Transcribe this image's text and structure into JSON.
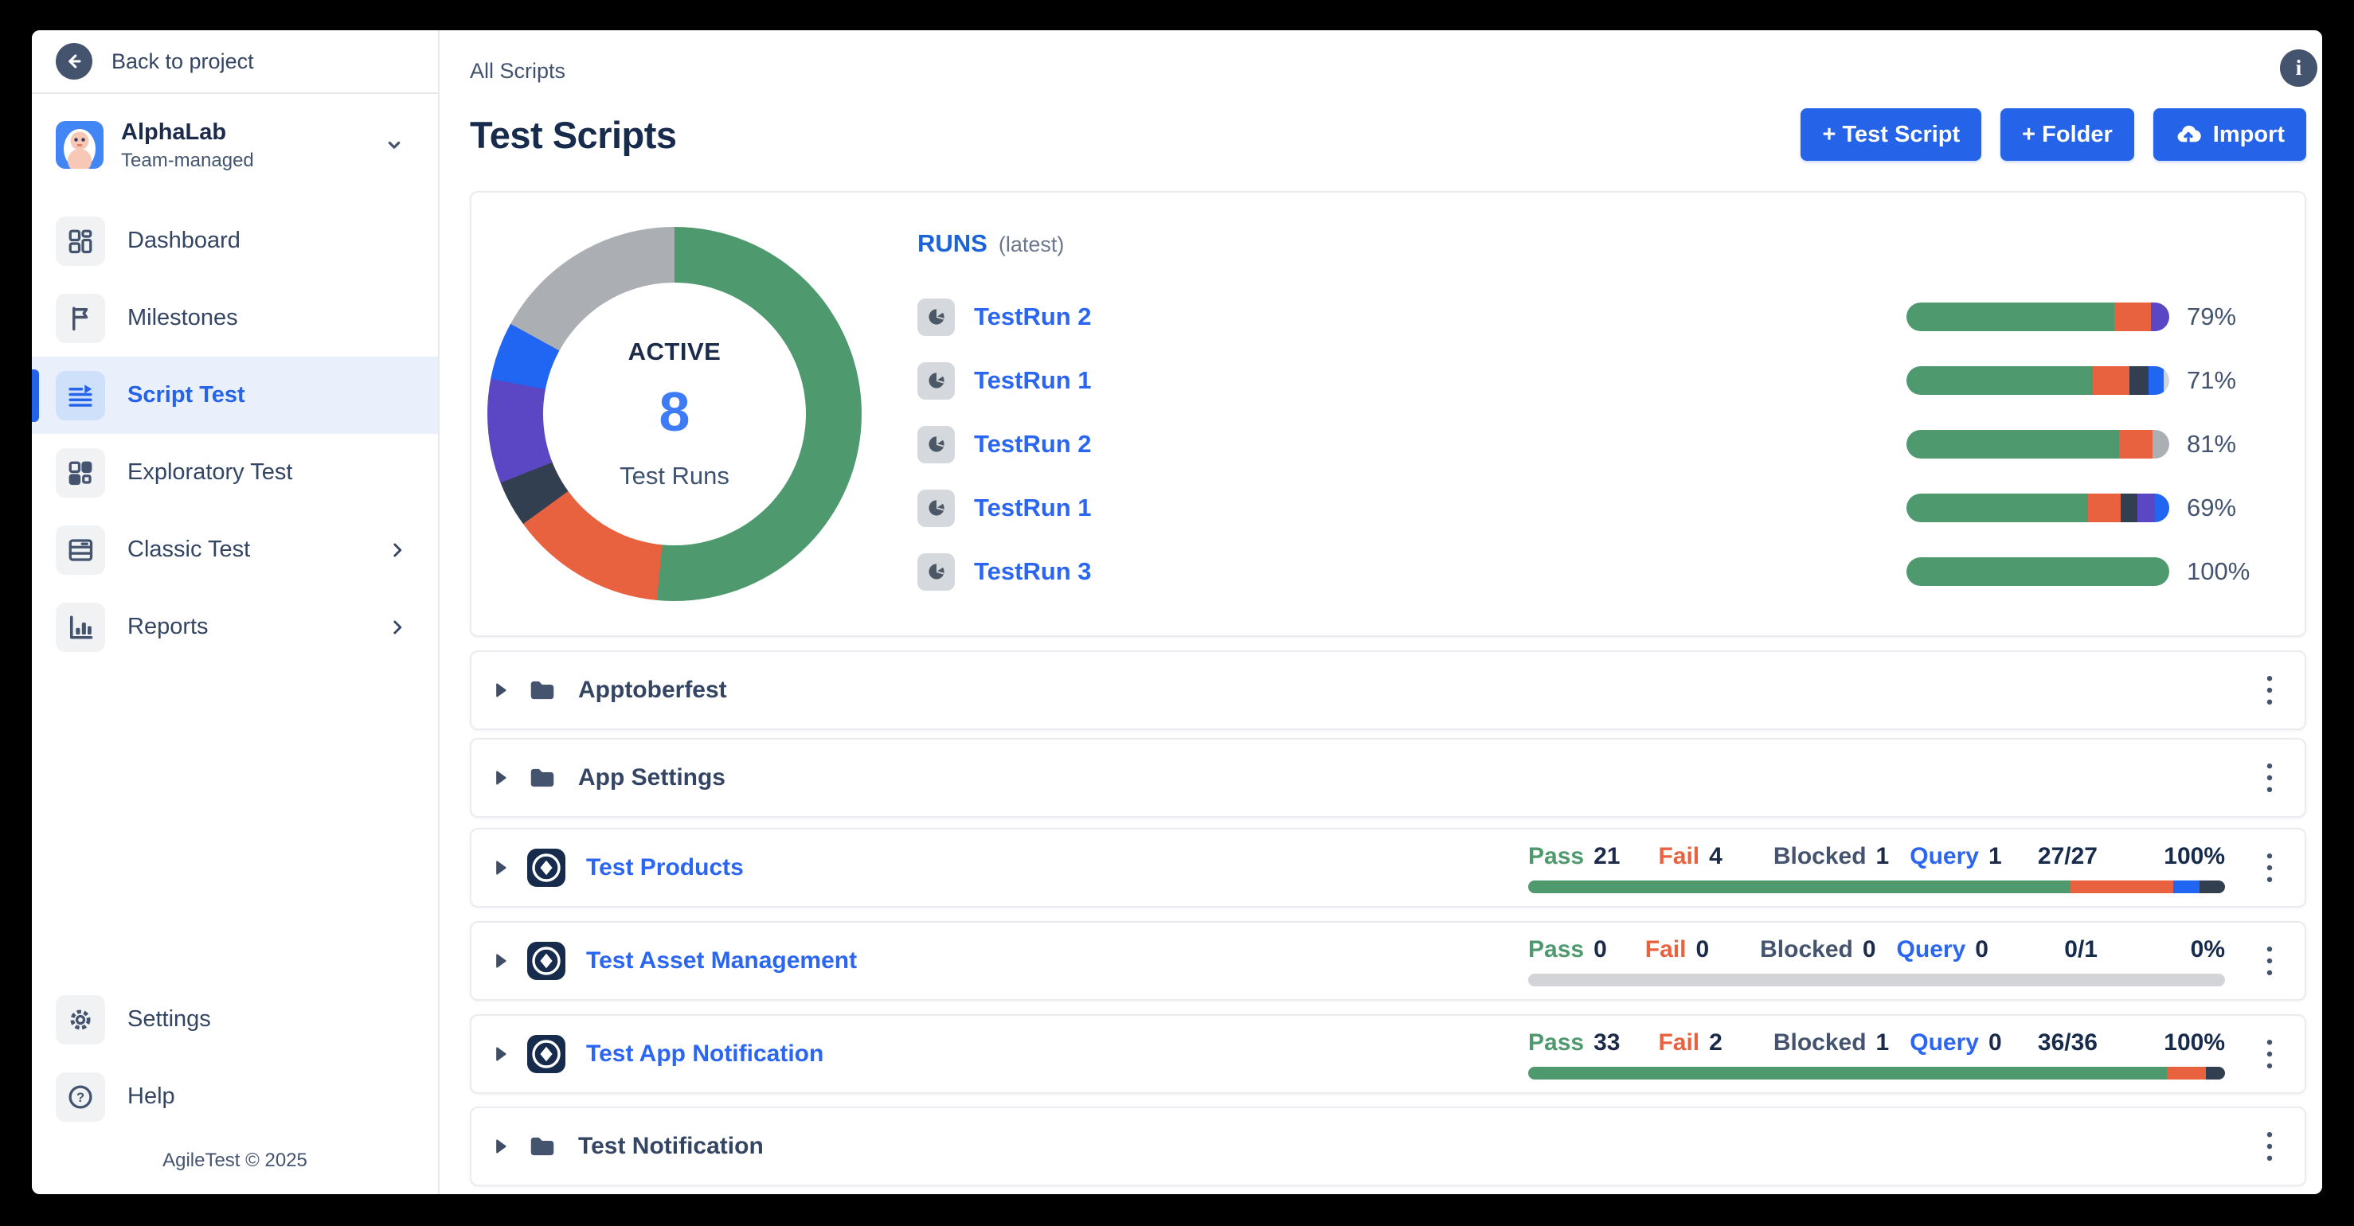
{
  "colors": {
    "green": "#4E996E",
    "orange": "#E8623F",
    "navy": "#323F50",
    "purple": "#5B47C4",
    "blue": "#2166F3",
    "gray": "#ABAEB2",
    "lightgray": "#D2D4D8",
    "brand_blue": "#2563E8",
    "link_blue": "#2B66F3"
  },
  "sidebar": {
    "back_label": "Back to project",
    "project": {
      "name": "AlphaLab",
      "type": "Team-managed"
    },
    "items": [
      {
        "label": "Dashboard"
      },
      {
        "label": "Milestones"
      },
      {
        "label": "Script Test"
      },
      {
        "label": "Exploratory Test"
      },
      {
        "label": "Classic Test"
      },
      {
        "label": "Reports"
      }
    ],
    "footer_items": [
      {
        "label": "Settings"
      },
      {
        "label": "Help"
      }
    ],
    "copyright": "AgileTest © 2025"
  },
  "header": {
    "breadcrumb": "All Scripts",
    "title": "Test Scripts",
    "buttons": [
      {
        "label": "+ Test Script"
      },
      {
        "label": "+ Folder"
      },
      {
        "label": "Import"
      }
    ]
  },
  "summary": {
    "donut": {
      "center_label_top": "ACTIVE",
      "center_value": "8",
      "center_label_bottom": "Test Runs",
      "segments": [
        {
          "color": "green",
          "pct": 51.5
        },
        {
          "color": "orange",
          "pct": 13.5
        },
        {
          "color": "navy",
          "pct": 4
        },
        {
          "color": "purple",
          "pct": 9
        },
        {
          "color": "blue",
          "pct": 5
        },
        {
          "color": "gray",
          "pct": 17
        }
      ]
    }
  },
  "runs": {
    "heading": "RUNS",
    "heading_suffix": "(latest)",
    "items": [
      {
        "label": "TestRun 2",
        "pct_label": "79%",
        "segments": [
          {
            "color": "green",
            "pct": 79
          },
          {
            "color": "orange",
            "pct": 14
          },
          {
            "color": "purple",
            "pct": 7
          }
        ]
      },
      {
        "label": "TestRun 1",
        "pct_label": "71%",
        "segments": [
          {
            "color": "green",
            "pct": 71
          },
          {
            "color": "orange",
            "pct": 14
          },
          {
            "color": "navy",
            "pct": 7
          },
          {
            "color": "blue",
            "pct": 6
          },
          {
            "color": "lightgray",
            "pct": 2
          }
        ]
      },
      {
        "label": "TestRun 2",
        "pct_label": "81%",
        "segments": [
          {
            "color": "green",
            "pct": 81
          },
          {
            "color": "orange",
            "pct": 12.5
          },
          {
            "color": "gray",
            "pct": 6.5
          }
        ]
      },
      {
        "label": "TestRun 1",
        "pct_label": "69%",
        "segments": [
          {
            "color": "green",
            "pct": 69
          },
          {
            "color": "orange",
            "pct": 12.5
          },
          {
            "color": "navy",
            "pct": 6.5
          },
          {
            "color": "purple",
            "pct": 6.5
          },
          {
            "color": "blue",
            "pct": 5.5
          }
        ]
      },
      {
        "label": "TestRun 3",
        "pct_label": "100%",
        "segments": [
          {
            "color": "green",
            "pct": 100
          }
        ]
      }
    ]
  },
  "stats_labels": {
    "pass": "Pass",
    "fail": "Fail",
    "blocked": "Blocked",
    "query": "Query"
  },
  "rows": [
    {
      "type": "folder",
      "name": "Apptoberfest"
    },
    {
      "type": "folder",
      "name": "App Settings"
    },
    {
      "type": "script",
      "name": "Test Products",
      "pass": "21",
      "fail": "4",
      "blocked": "1",
      "query": "1",
      "ratio": "27/27",
      "pct": "100%",
      "segments": [
        {
          "color": "green",
          "pct": 77.8
        },
        {
          "color": "orange",
          "pct": 14.8
        },
        {
          "color": "blue",
          "pct": 3.7
        },
        {
          "color": "navy",
          "pct": 3.7
        }
      ]
    },
    {
      "type": "script",
      "name": "Test Asset Management",
      "pass": "0",
      "fail": "0",
      "blocked": "0",
      "query": "0",
      "ratio": "0/1",
      "pct": "0%",
      "segments": [
        {
          "color": "lightgray",
          "pct": 100
        }
      ]
    },
    {
      "type": "script",
      "name": "Test App Notification",
      "pass": "33",
      "fail": "2",
      "blocked": "1",
      "query": "0",
      "ratio": "36/36",
      "pct": "100%",
      "segments": [
        {
          "color": "green",
          "pct": 91.7
        },
        {
          "color": "orange",
          "pct": 5.5
        },
        {
          "color": "navy",
          "pct": 2.8
        }
      ]
    },
    {
      "type": "folder",
      "name": "Test Notification"
    }
  ]
}
